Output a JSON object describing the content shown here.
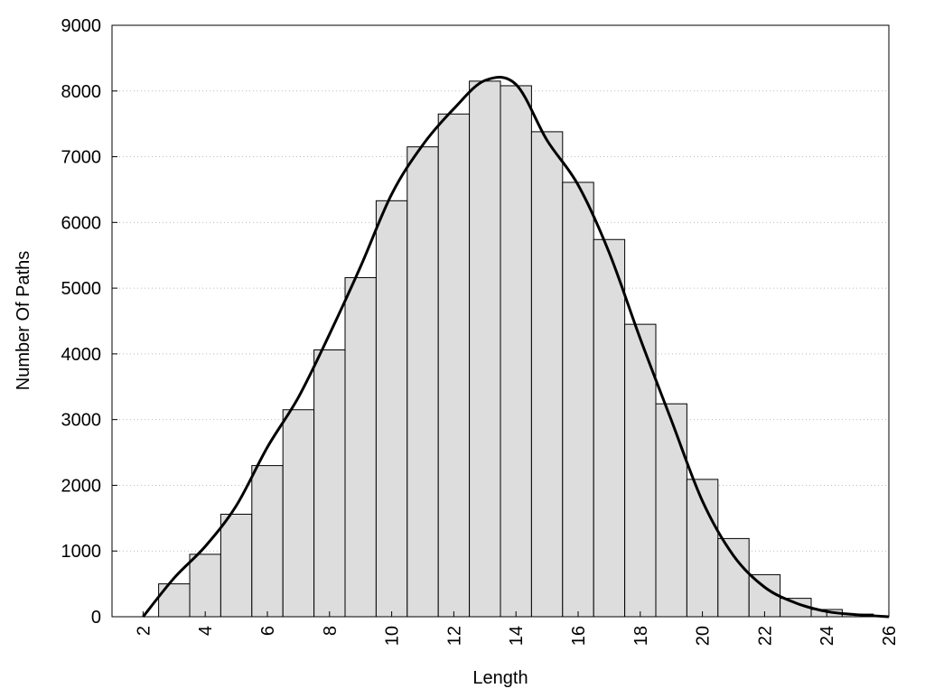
{
  "chart_data": {
    "type": "histogram",
    "xlabel": "Length",
    "ylabel": "Number Of Paths",
    "bins": [
      2.5,
      3.5,
      4.5,
      5.5,
      6.5,
      7.5,
      8.5,
      9.5,
      10.5,
      11.5,
      12.5,
      13.5,
      14.5,
      15.5,
      16.5,
      17.5,
      18.5,
      19.5,
      20.5,
      21.5,
      22.5,
      23.5,
      24.5,
      25.5
    ],
    "values": [
      500,
      950,
      1560,
      2300,
      3150,
      4060,
      5160,
      6330,
      7150,
      7650,
      8150,
      8080,
      7380,
      6610,
      5740,
      4450,
      3240,
      2090,
      1190,
      640,
      280,
      110,
      40
    ],
    "color": "#dddddd",
    "curve": {
      "type": "line",
      "color": "#000000",
      "x": [
        2,
        3,
        4,
        5,
        6,
        7,
        8,
        9,
        10,
        11,
        12,
        13,
        14,
        15,
        16,
        17,
        18,
        19,
        20,
        21,
        22,
        23,
        24,
        25,
        26
      ],
      "values": [
        0,
        590,
        1070,
        1690,
        2580,
        3340,
        4300,
        5330,
        6430,
        7180,
        7730,
        8160,
        8100,
        7250,
        6570,
        5540,
        4230,
        2990,
        1760,
        930,
        450,
        210,
        80,
        30,
        0
      ]
    },
    "xlim": [
      1,
      26
    ],
    "xticks": [
      2,
      4,
      6,
      8,
      10,
      12,
      14,
      16,
      18,
      20,
      22,
      24,
      26
    ],
    "ylim": [
      0,
      9000
    ],
    "yticks": [
      0,
      1000,
      2000,
      3000,
      4000,
      5000,
      6000,
      7000,
      8000,
      9000
    ],
    "grid": true
  }
}
